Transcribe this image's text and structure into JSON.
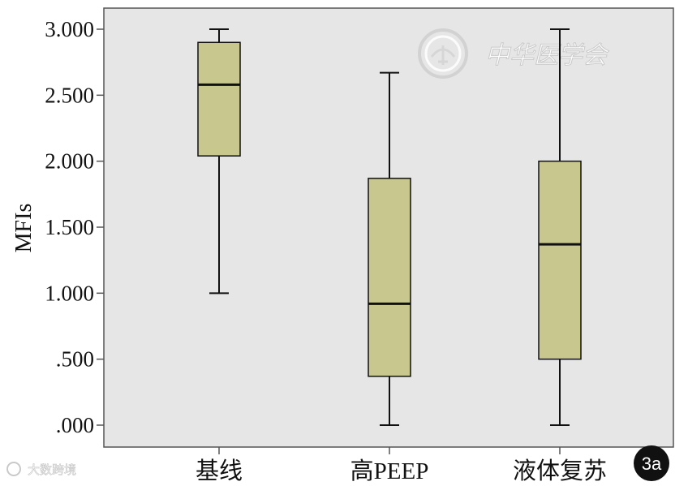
{
  "chart_data": {
    "type": "box",
    "ylabel": "MFIs",
    "ylim": [
      0,
      3.0
    ],
    "yticks": [
      0,
      0.5,
      1.0,
      1.5,
      2.0,
      2.5,
      3.0
    ],
    "ytick_labels": [
      ".000",
      ".500",
      "1.000",
      "1.500",
      "2.000",
      "2.500",
      "3.000"
    ],
    "categories": [
      "基线",
      "高PEEP",
      "液体复苏"
    ],
    "boxes": [
      {
        "category": "基线",
        "min": 1.0,
        "q1": 2.04,
        "median": 2.58,
        "q3": 2.9,
        "max": 3.0
      },
      {
        "category": "高PEEP",
        "min": 0.0,
        "q1": 0.37,
        "median": 0.92,
        "q3": 1.87,
        "max": 2.67
      },
      {
        "category": "液体复苏",
        "min": 0.0,
        "q1": 0.5,
        "median": 1.37,
        "q3": 2.0,
        "max": 3.0
      }
    ],
    "grid": false,
    "plot_background": "#e6e6e6",
    "box_fill": "#c8c78e",
    "line_color": "#111111"
  },
  "panel_label": "3a",
  "watermark": {
    "text": "中华医学会",
    "source": "大数跨境",
    "icons": [
      "seal-logo",
      "source-logo"
    ]
  }
}
